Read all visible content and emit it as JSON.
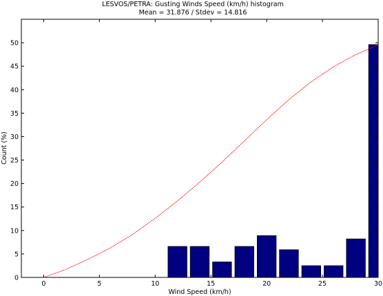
{
  "chart_data": {
    "type": "bar",
    "title": "LESVOS/PETRA: Gusting Winds Speed (km/h) histogram",
    "subtitle": "Mean = 31.876 / Stdev = 14.816",
    "xlabel": "Wind Speed (km/h)",
    "ylabel": "Count (%)",
    "xlim": [
      -2,
      30
    ],
    "ylim": [
      0,
      55
    ],
    "xticks": [
      0,
      5,
      10,
      15,
      20,
      25,
      30
    ],
    "yticks": [
      0,
      5,
      10,
      15,
      20,
      25,
      30,
      35,
      40,
      45,
      50
    ],
    "grid": false,
    "series": [
      {
        "type": "bar",
        "color": "#000080",
        "x": [
          12,
          14,
          16,
          18,
          20,
          22,
          24,
          26,
          28,
          30
        ],
        "values": [
          6.6,
          6.6,
          3.3,
          6.6,
          8.9,
          5.9,
          2.5,
          2.5,
          8.2,
          49.6
        ]
      },
      {
        "type": "line",
        "color": "#ff0000",
        "x": [
          0,
          2,
          4,
          6,
          8,
          10,
          12,
          14,
          16,
          18,
          20,
          22,
          24,
          26,
          28,
          29,
          30
        ],
        "values": [
          0,
          1.7,
          3.9,
          6.3,
          9.2,
          12.6,
          16.3,
          20.3,
          24.6,
          29.1,
          33.6,
          37.9,
          41.7,
          44.9,
          47.5,
          48.5,
          49.6
        ]
      }
    ]
  }
}
